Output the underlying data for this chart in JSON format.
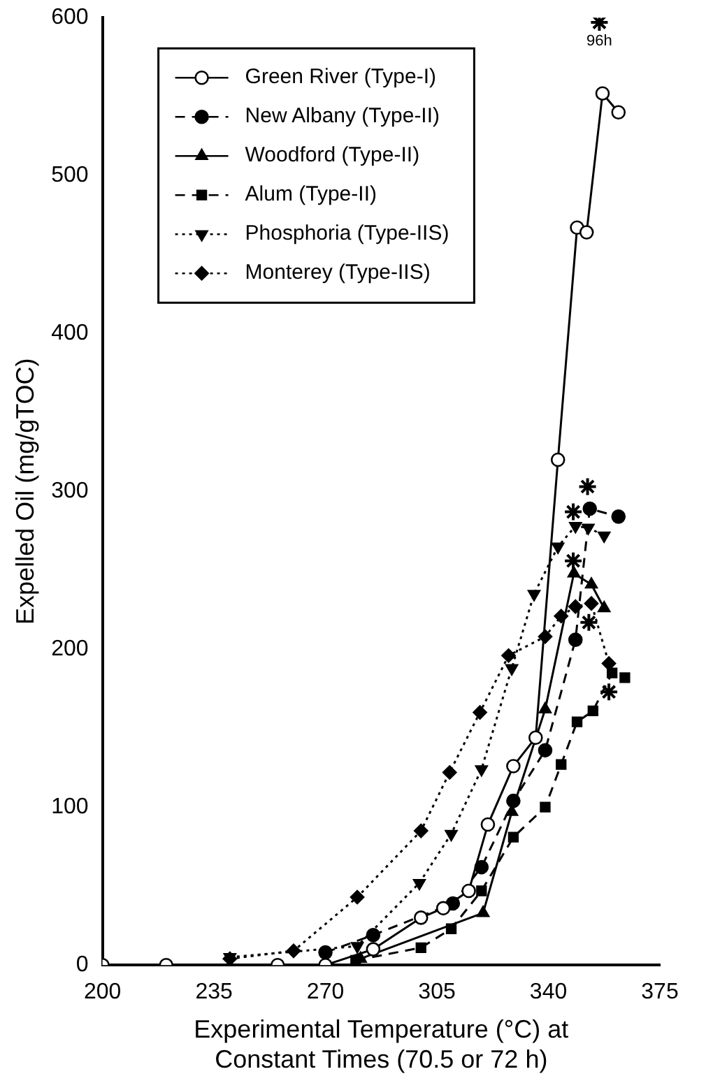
{
  "chart_data": {
    "type": "line",
    "xlabel": "Experimental Temperature (°C) at\nConstant Times (70.5 or 72 h)",
    "ylabel": "Expelled Oil (mg/gTOC)",
    "xlim": [
      200,
      375
    ],
    "xticks": [
      200,
      235,
      270,
      305,
      340,
      375
    ],
    "ylim": [
      0,
      600
    ],
    "yticks": [
      0,
      100,
      200,
      300,
      400,
      500,
      600
    ],
    "grid": false,
    "legend": "top left",
    "series": [
      {
        "name": "Green River (Type-I)",
        "color": "#000000",
        "marker": "open-circle",
        "line_style": "solid",
        "x": [
          200,
          220,
          255,
          270,
          285,
          300,
          307,
          315,
          321,
          329,
          336,
          343,
          349,
          352,
          357,
          362
        ],
        "values": [
          0,
          0,
          0,
          0,
          10,
          30,
          36,
          47,
          89,
          126,
          144,
          320,
          467,
          464,
          552,
          540
        ]
      },
      {
        "name": "New Albany (Type-II)",
        "color": "#000000",
        "marker": "circle",
        "line_style": "dashed",
        "x": [
          270,
          285,
          310,
          319,
          329,
          339,
          348.5,
          353,
          362
        ],
        "values": [
          8,
          19,
          39,
          62,
          104,
          136,
          206,
          289,
          284
        ]
      },
      {
        "name": "Woodford (Type-II)",
        "color": "#000000",
        "marker": "triangle",
        "line_style": "solid",
        "x": [
          281,
          319.5,
          328.5,
          339,
          348,
          353.5,
          357.5
        ],
        "values": [
          4,
          33,
          97,
          162,
          248,
          241,
          226
        ]
      },
      {
        "name": "Alum (Type-II)",
        "color": "#000000",
        "marker": "square",
        "line_style": "dashed",
        "x": [
          279.5,
          300,
          309.5,
          319,
          329,
          339,
          344,
          349,
          354,
          360,
          364
        ],
        "values": [
          3,
          11,
          23,
          47,
          81,
          100,
          127,
          154,
          161,
          185,
          182
        ]
      },
      {
        "name": "Phosphoria (Type-IIS)",
        "color": "#000000",
        "marker": "triangle-down",
        "line_style": "dotted",
        "x": [
          240,
          280,
          299.5,
          309.5,
          319,
          328.5,
          335.5,
          343,
          348.5,
          352.5,
          357.5
        ],
        "values": [
          5,
          12,
          52,
          83,
          124,
          188,
          235,
          265,
          278,
          277,
          272
        ]
      },
      {
        "name": "Monterey (Type-IIS)",
        "color": "#000000",
        "marker": "diamond",
        "line_style": "dotted",
        "x": [
          240,
          260,
          280,
          300,
          309,
          318.5,
          327.5,
          339,
          344,
          348.5,
          353.5,
          359
        ],
        "values": [
          4,
          9,
          43,
          85,
          122,
          160,
          196,
          208,
          221,
          227,
          229,
          191
        ]
      },
      {
        "type": "scatter",
        "color": "#000000",
        "marker": "cross",
        "x": [
          347.8,
          347.8,
          352.3,
          352.7,
          359,
          356
        ],
        "values": [
          256,
          287,
          303,
          217,
          173,
          597
        ]
      }
    ],
    "annotations": [
      {
        "text": "96h",
        "x": 356,
        "y": 597
      }
    ]
  }
}
